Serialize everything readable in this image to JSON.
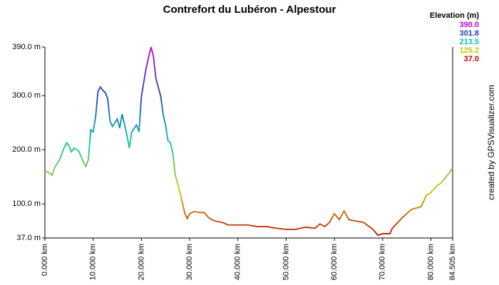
{
  "chart_data": {
    "type": "line",
    "title": "Contrefort du Lubéron - Alpestour",
    "watermark": "created by GPSVisualizer.com",
    "legend_title": "Elevation (m)",
    "legend": [
      {
        "value": 390.0,
        "label": "390.0",
        "color": "#cc00cc"
      },
      {
        "value": 301.8,
        "label": "301.8",
        "color": "#1f3fbf"
      },
      {
        "value": 213.5,
        "label": "213.5",
        "color": "#00c8a8"
      },
      {
        "value": 125.2,
        "label": "125.2",
        "color": "#c8c800"
      },
      {
        "value": 37.0,
        "label": "37.0",
        "color": "#c00000"
      }
    ],
    "x": [
      0,
      1,
      1.5,
      2,
      3,
      4,
      4.5,
      5,
      5.5,
      6,
      7,
      8,
      8.5,
      9,
      9.5,
      10,
      10.5,
      11,
      11.5,
      12,
      12.5,
      13,
      13.5,
      14,
      15,
      15.5,
      16,
      17,
      17.5,
      18,
      19,
      19.5,
      20,
      21,
      22,
      22.5,
      23,
      24,
      24.5,
      25,
      25.5,
      26,
      26.5,
      27,
      28,
      29,
      29.5,
      30,
      31,
      32,
      33,
      34,
      35,
      37,
      38,
      40,
      42,
      44,
      46,
      48,
      50,
      52,
      54,
      56,
      57,
      58,
      59,
      60,
      61,
      62,
      63,
      64,
      66,
      68,
      69,
      70,
      71.5,
      72,
      74,
      76,
      78,
      79,
      80,
      81,
      82,
      83,
      84.505
    ],
    "series": [
      {
        "name": "Elevation",
        "values": [
          161,
          157,
          153,
          167,
          181,
          204,
          213,
          207,
          196,
          203,
          198,
          177,
          169,
          182,
          237,
          233,
          260,
          308,
          316,
          310,
          306,
          295,
          253,
          243,
          257,
          240,
          266,
          227,
          203,
          233,
          246,
          233,
          299,
          352,
          390,
          372,
          332,
          299,
          266,
          246,
          217,
          213,
          194,
          154,
          121,
          82,
          73,
          82,
          86,
          84,
          84,
          74,
          69,
          65,
          61,
          61,
          61,
          58,
          58,
          55,
          53,
          53,
          57,
          55,
          63,
          58,
          66,
          82,
          71,
          87,
          71,
          69,
          66,
          53,
          42,
          45,
          45,
          55,
          74,
          90,
          95,
          115,
          121,
          132,
          138,
          148,
          166
        ]
      }
    ],
    "xlim": [
      0,
      84.505
    ],
    "xticks": [
      {
        "value": 0,
        "label": "0.000 km"
      },
      {
        "value": 10,
        "label": "10.000 km"
      },
      {
        "value": 20,
        "label": "20.000 km"
      },
      {
        "value": 30,
        "label": "30.000 km"
      },
      {
        "value": 40,
        "label": "40.000 km"
      },
      {
        "value": 50,
        "label": "50.000 km"
      },
      {
        "value": 60,
        "label": "60.000 km"
      },
      {
        "value": 70,
        "label": "70.000 km"
      },
      {
        "value": 80,
        "label": "80.000 km"
      },
      {
        "value": 84.505,
        "label": "84.505 km"
      }
    ],
    "ylim": [
      37,
      390
    ],
    "yticks": [
      {
        "value": 37,
        "label": "37.0 m"
      },
      {
        "value": 100,
        "label": "100.0 m"
      },
      {
        "value": 200,
        "label": "200.0 m"
      },
      {
        "value": 300,
        "label": "300.0 m"
      },
      {
        "value": 390,
        "label": "390.0 m"
      }
    ]
  }
}
